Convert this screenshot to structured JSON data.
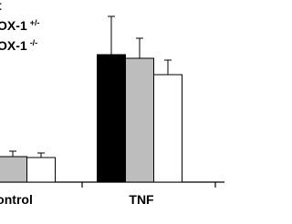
{
  "chart_data": {
    "type": "bar",
    "categories": [
      "ontrol",
      "TNF"
    ],
    "series": [
      {
        "name": "t",
        "color": "#000000",
        "values": [
          14,
          70
        ],
        "errors": [
          3,
          21
        ]
      },
      {
        "name": "OX-1 +/-",
        "color": "#bdbdbd",
        "values": [
          14,
          68
        ],
        "errors": [
          3,
          11
        ]
      },
      {
        "name": "OX-1 -/-",
        "color": "#ffffff",
        "values": [
          13.5,
          59
        ],
        "errors": [
          2.5,
          8
        ]
      }
    ],
    "ylim": [
      0,
      100
    ]
  }
}
